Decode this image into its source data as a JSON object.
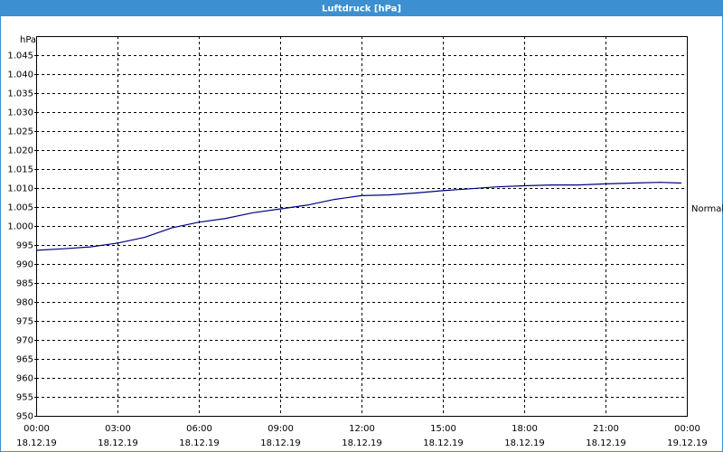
{
  "chart_data": {
    "type": "line",
    "title": "Luftdruck [hPa]",
    "y_unit": "hPa",
    "x": [
      0,
      1,
      2,
      3,
      4,
      5,
      6,
      7,
      8,
      9,
      10,
      11,
      12,
      13,
      14,
      15,
      16,
      17,
      18,
      19,
      20,
      21,
      22,
      23,
      23.8
    ],
    "series": [
      {
        "name": "Normal",
        "color": "#00007f",
        "values": [
          993.6,
          994,
          994.5,
          995.5,
          997,
          999.5,
          1001,
          1002,
          1003.5,
          1004.5,
          1005.5,
          1007,
          1008,
          1008.2,
          1008.7,
          1009.3,
          1009.8,
          1010.3,
          1010.6,
          1010.8,
          1010.8,
          1011.1,
          1011.3,
          1011.5,
          1011.3
        ]
      }
    ],
    "xlim": [
      0,
      24
    ],
    "xticks": [
      {
        "value": 0,
        "label": "00:00"
      },
      {
        "value": 3,
        "label": "03:00"
      },
      {
        "value": 6,
        "label": "06:00"
      },
      {
        "value": 9,
        "label": "09:00"
      },
      {
        "value": 12,
        "label": "12:00"
      },
      {
        "value": 15,
        "label": "15:00"
      },
      {
        "value": 18,
        "label": "18:00"
      },
      {
        "value": 21,
        "label": "21:00"
      },
      {
        "value": 24,
        "label": "00:00"
      }
    ],
    "xtick_dates": [
      "18.12.19",
      "18.12.19",
      "18.12.19",
      "18.12.19",
      "18.12.19",
      "18.12.19",
      "18.12.19",
      "18.12.19",
      "19.12.19"
    ],
    "ylim": [
      950,
      1050
    ],
    "yticks": [
      950,
      955,
      960,
      965,
      970,
      975,
      980,
      985,
      990,
      995,
      {
        "value": 1000,
        "label": "1.000"
      },
      {
        "value": 1005,
        "label": "1.005"
      },
      {
        "value": 1010,
        "label": "1.010"
      },
      {
        "value": 1015,
        "label": "1.015"
      },
      {
        "value": 1020,
        "label": "1.020"
      },
      {
        "value": 1025,
        "label": "1.025"
      },
      {
        "value": 1030,
        "label": "1.030"
      },
      {
        "value": 1035,
        "label": "1.035"
      },
      {
        "value": 1040,
        "label": "1.040"
      },
      {
        "value": 1045,
        "label": "1.045"
      }
    ],
    "grid": true,
    "legend": "right"
  }
}
